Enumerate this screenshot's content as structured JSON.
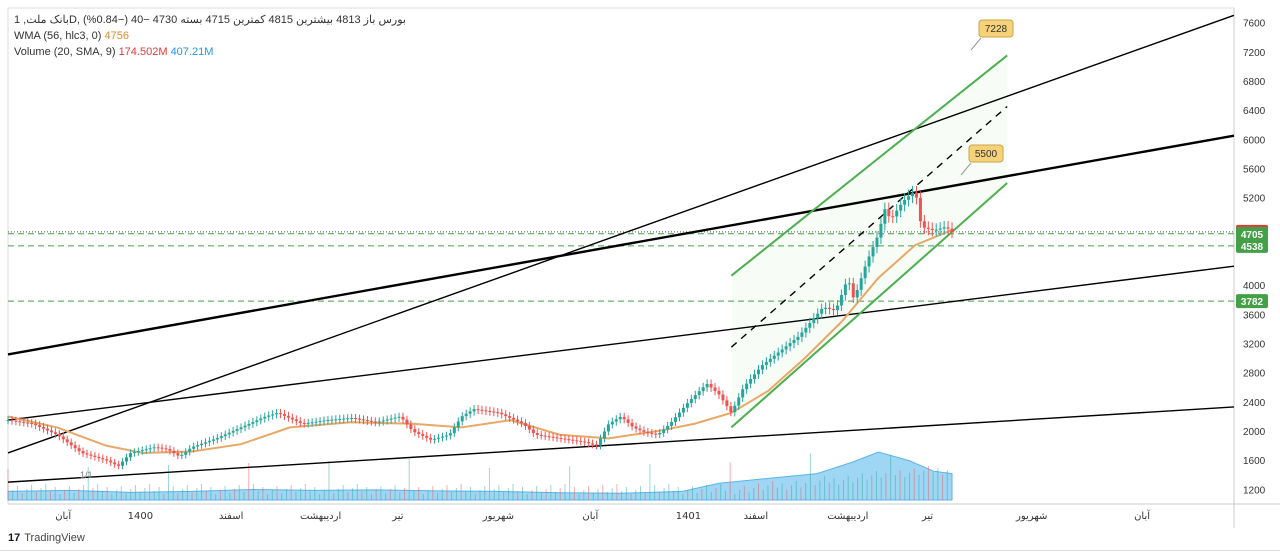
{
  "legend": {
    "title": "بانک ملت, 1D, بورس",
    "ohlc": "باز 4813  بیشترین 4815  کمترین 4715  بسته 4730  −40 (−0.84%)",
    "wma_label": "WMA (56, hlc3, 0)",
    "wma_value": "4756",
    "volume_label": "Volume (20, SMA, 9)",
    "volume_value": "174.502M",
    "volume_sma": "407.21M"
  },
  "footer": {
    "brand": "TradingView",
    "logo": "17"
  },
  "colors": {
    "up": "#26a69a",
    "down": "#ef5350",
    "wma": "#e8a867",
    "volume_area": "#7ec8f0",
    "channel_green": "#4caf50",
    "trend_black": "#000000",
    "dashed_level": "#43a047",
    "last_price_tag": "#e53935",
    "level_tag": "#43a047",
    "callout_bg": "#f5d27a"
  },
  "chart_data": {
    "type": "candlestick",
    "symbol": "بانک ملت",
    "interval": "1D",
    "exchange": "بورس",
    "y_axis": {
      "ticks": [
        1200,
        1600,
        2000,
        2400,
        2800,
        3200,
        3600,
        4000,
        4400,
        4800,
        5200,
        5600,
        6000,
        6400,
        6800,
        7200,
        7600
      ],
      "tick_labels": [
        "1200",
        "1600",
        "2000",
        "2400",
        "2800",
        "3200",
        "3600",
        "4000",
        "",
        "",
        "5200",
        "5600",
        "6000",
        "6400",
        "6800",
        "7200",
        "7600"
      ],
      "range": [
        1000,
        7800
      ]
    },
    "x_axis": {
      "labels": [
        "آبان",
        "1400",
        "اسفند",
        "اردیبهشت",
        "تیر",
        "شهریور",
        "آبان",
        "1401",
        "اسفند",
        "اردیبهشت",
        "تیر",
        "شهریور",
        "آبان"
      ]
    },
    "price_tags": [
      {
        "value": 4730,
        "label": "4730",
        "kind": "last"
      },
      {
        "value": 4705,
        "label": "4705",
        "kind": "level"
      },
      {
        "value": 4538,
        "label": "4538",
        "kind": "level"
      },
      {
        "value": 3782,
        "label": "3782",
        "kind": "level"
      }
    ],
    "dashed_levels": [
      4705,
      4538,
      3782
    ],
    "dotted_level": 4730,
    "callouts": [
      {
        "value": 7228,
        "label": "7228"
      },
      {
        "value": 5500,
        "label": "5500"
      }
    ],
    "annotation_1_1": "1/1",
    "price_path": [
      [
        0,
        2150
      ],
      [
        0.02,
        2100
      ],
      [
        0.04,
        1950
      ],
      [
        0.06,
        1700
      ],
      [
        0.08,
        1600
      ],
      [
        0.09,
        1520
      ],
      [
        0.1,
        1700
      ],
      [
        0.12,
        1780
      ],
      [
        0.13,
        1750
      ],
      [
        0.14,
        1650
      ],
      [
        0.15,
        1780
      ],
      [
        0.17,
        1900
      ],
      [
        0.19,
        2050
      ],
      [
        0.21,
        2200
      ],
      [
        0.22,
        2250
      ],
      [
        0.24,
        2100
      ],
      [
        0.26,
        2150
      ],
      [
        0.28,
        2180
      ],
      [
        0.3,
        2120
      ],
      [
        0.32,
        2200
      ],
      [
        0.33,
        2000
      ],
      [
        0.345,
        1880
      ],
      [
        0.36,
        1950
      ],
      [
        0.37,
        2200
      ],
      [
        0.38,
        2300
      ],
      [
        0.4,
        2250
      ],
      [
        0.42,
        2100
      ],
      [
        0.43,
        1950
      ],
      [
        0.45,
        1900
      ],
      [
        0.47,
        1850
      ],
      [
        0.48,
        1800
      ],
      [
        0.49,
        2100
      ],
      [
        0.5,
        2200
      ],
      [
        0.51,
        2050
      ],
      [
        0.52,
        1980
      ],
      [
        0.53,
        1950
      ],
      [
        0.54,
        2100
      ],
      [
        0.555,
        2400
      ],
      [
        0.57,
        2650
      ],
      [
        0.58,
        2500
      ],
      [
        0.59,
        2250
      ],
      [
        0.6,
        2600
      ],
      [
        0.615,
        2900
      ],
      [
        0.63,
        3100
      ],
      [
        0.645,
        3300
      ],
      [
        0.655,
        3500
      ],
      [
        0.665,
        3700
      ],
      [
        0.675,
        3650
      ],
      [
        0.685,
        4100
      ],
      [
        0.69,
        3800
      ],
      [
        0.7,
        4300
      ],
      [
        0.71,
        4700
      ],
      [
        0.715,
        5050
      ],
      [
        0.72,
        4900
      ],
      [
        0.73,
        5150
      ],
      [
        0.74,
        5300
      ],
      [
        0.745,
        4800
      ],
      [
        0.755,
        4750
      ],
      [
        0.765,
        4800
      ],
      [
        0.77,
        4730
      ]
    ],
    "wma_path": [
      [
        0,
        2200
      ],
      [
        0.04,
        2050
      ],
      [
        0.08,
        1800
      ],
      [
        0.11,
        1700
      ],
      [
        0.15,
        1720
      ],
      [
        0.19,
        1820
      ],
      [
        0.23,
        2050
      ],
      [
        0.28,
        2120
      ],
      [
        0.33,
        2100
      ],
      [
        0.37,
        2050
      ],
      [
        0.41,
        2150
      ],
      [
        0.45,
        1950
      ],
      [
        0.49,
        1900
      ],
      [
        0.53,
        2000
      ],
      [
        0.56,
        2100
      ],
      [
        0.59,
        2250
      ],
      [
        0.62,
        2550
      ],
      [
        0.65,
        3000
      ],
      [
        0.68,
        3500
      ],
      [
        0.71,
        4100
      ],
      [
        0.74,
        4550
      ],
      [
        0.77,
        4756
      ]
    ],
    "volume_area_path": [
      [
        0,
        0.18
      ],
      [
        0.05,
        0.2
      ],
      [
        0.1,
        0.16
      ],
      [
        0.15,
        0.18
      ],
      [
        0.2,
        0.22
      ],
      [
        0.25,
        0.2
      ],
      [
        0.3,
        0.21
      ],
      [
        0.35,
        0.19
      ],
      [
        0.4,
        0.18
      ],
      [
        0.45,
        0.15
      ],
      [
        0.5,
        0.14
      ],
      [
        0.55,
        0.18
      ],
      [
        0.58,
        0.35
      ],
      [
        0.62,
        0.45
      ],
      [
        0.66,
        0.55
      ],
      [
        0.69,
        0.8
      ],
      [
        0.71,
        1.0
      ],
      [
        0.735,
        0.82
      ],
      [
        0.755,
        0.6
      ],
      [
        0.77,
        0.55
      ]
    ],
    "trendlines": [
      {
        "style": "black",
        "from": [
          0,
          1700
        ],
        "to": [
          1,
          7700
        ]
      },
      {
        "style": "black-thick",
        "from": [
          0,
          3050
        ],
        "to": [
          1,
          6050
        ]
      },
      {
        "style": "black",
        "from": [
          0,
          2150
        ],
        "to": [
          1,
          4260
        ]
      },
      {
        "style": "black",
        "from": [
          0,
          1300
        ],
        "to": [
          1,
          2330
        ]
      },
      {
        "style": "green",
        "from": [
          0.59,
          4130
        ],
        "to": [
          0.815,
          7150
        ]
      },
      {
        "style": "green",
        "from": [
          0.59,
          2050
        ],
        "to": [
          0.815,
          5400
        ]
      },
      {
        "style": "dashed-black",
        "from": [
          0.59,
          3150
        ],
        "to": [
          0.815,
          6450
        ]
      }
    ]
  }
}
